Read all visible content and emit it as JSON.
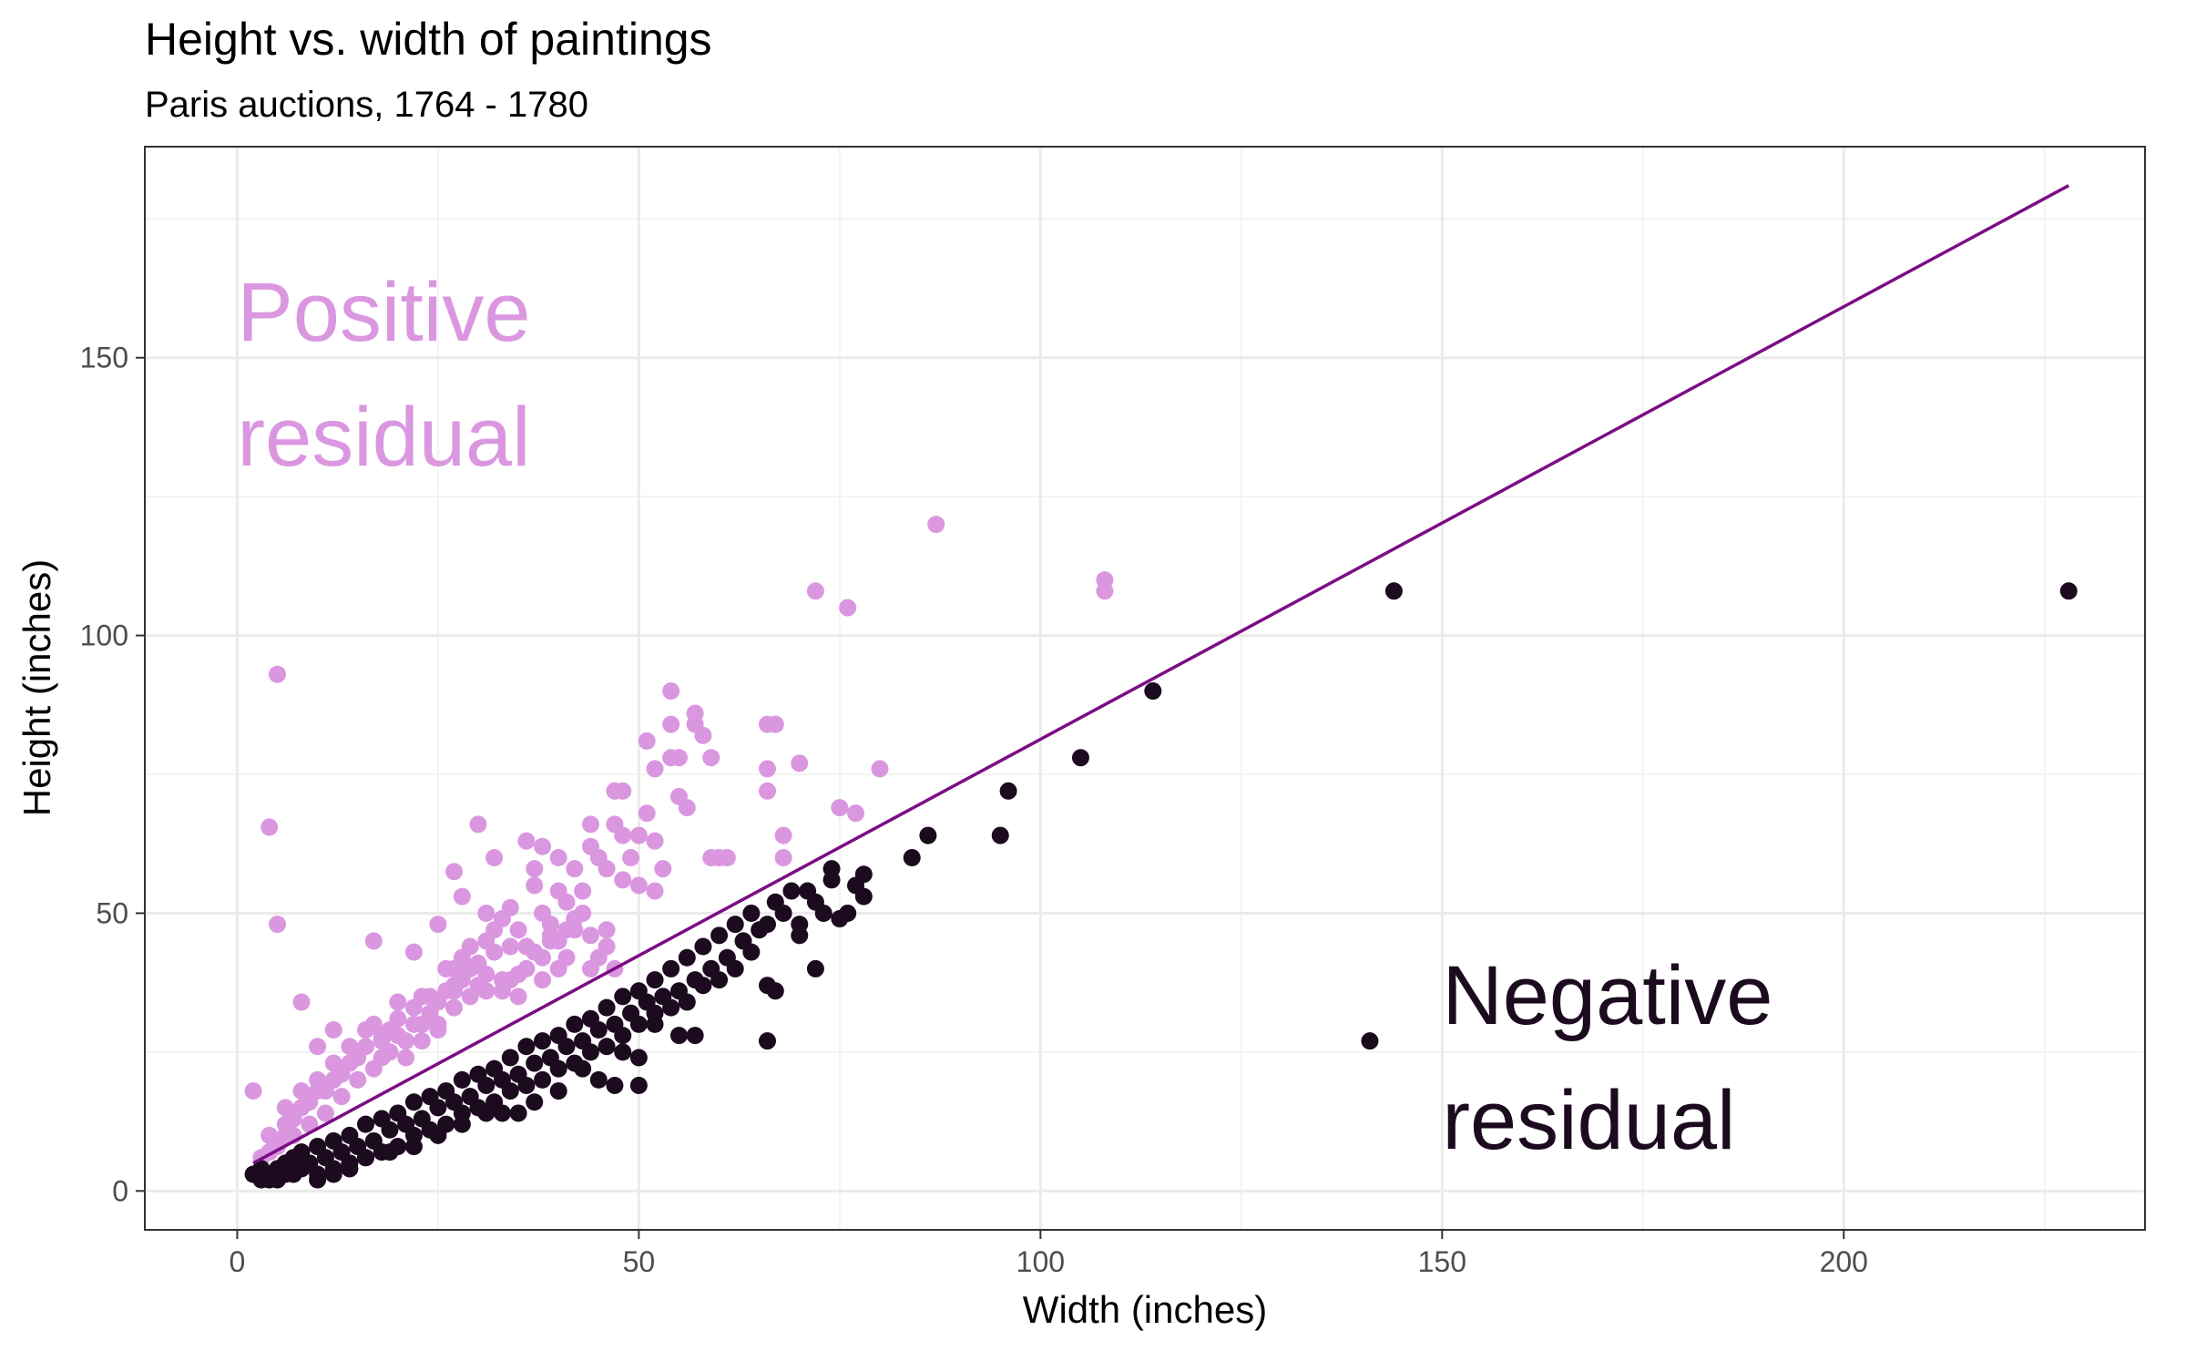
{
  "chart_data": {
    "type": "scatter",
    "title": "Height vs. width of paintings",
    "subtitle": "Paris auctions, 1764 - 1780",
    "xlabel": "Width (inches)",
    "ylabel": "Height (inches)",
    "xlim": [
      -11.5,
      237.5
    ],
    "ylim": [
      -7,
      188
    ],
    "x_ticks": [
      0,
      50,
      100,
      150,
      200
    ],
    "y_ticks": [
      0,
      50,
      100,
      150
    ],
    "grid": true,
    "colors": {
      "positive": "#DA97E0",
      "negative": "#1C0A1F",
      "fit_line": "#7B0D84",
      "panel_border": "#333333",
      "grid_major": "#EBEBEB",
      "grid_minor": "#F3F3F3"
    },
    "annotations": [
      {
        "lines": [
          "Positive",
          "residual"
        ],
        "color": "#DA97E0",
        "x": 0,
        "y": 158
      },
      {
        "lines": [
          "Negative",
          "residual"
        ],
        "color": "#1C0A1F",
        "x": 150,
        "y": 35
      }
    ],
    "fit_line": {
      "x": [
        2,
        228
      ],
      "y": [
        5,
        181
      ]
    },
    "series": [
      {
        "residual": "positive",
        "color": "#DA97E0",
        "points": [
          [
            2,
            18
          ],
          [
            4,
            65.5
          ],
          [
            5,
            48
          ],
          [
            5,
            93
          ],
          [
            8,
            34
          ],
          [
            10,
            26
          ],
          [
            12,
            29
          ],
          [
            17,
            45
          ],
          [
            22,
            43
          ],
          [
            25,
            48
          ],
          [
            27,
            57.5
          ],
          [
            27,
            37
          ],
          [
            28,
            53
          ],
          [
            30,
            66
          ],
          [
            31,
            50
          ],
          [
            32,
            47
          ],
          [
            32,
            60
          ],
          [
            34,
            51
          ],
          [
            34,
            44
          ],
          [
            36,
            63
          ],
          [
            37,
            58
          ],
          [
            37,
            55
          ],
          [
            38,
            50
          ],
          [
            38,
            62
          ],
          [
            39,
            46
          ],
          [
            40,
            60
          ],
          [
            40,
            54
          ],
          [
            41,
            52
          ],
          [
            42,
            58
          ],
          [
            42,
            49
          ],
          [
            43,
            54
          ],
          [
            44,
            62
          ],
          [
            44,
            66
          ],
          [
            45,
            60
          ],
          [
            46,
            58
          ],
          [
            47,
            72
          ],
          [
            47,
            66
          ],
          [
            48,
            72
          ],
          [
            48,
            64
          ],
          [
            49,
            60
          ],
          [
            50,
            64
          ],
          [
            51,
            81
          ],
          [
            51,
            68
          ],
          [
            52,
            76
          ],
          [
            52,
            63
          ],
          [
            53,
            58
          ],
          [
            54,
            90
          ],
          [
            54,
            84
          ],
          [
            54,
            78
          ],
          [
            55,
            78
          ],
          [
            55,
            71
          ],
          [
            56,
            69
          ],
          [
            57,
            86
          ],
          [
            57,
            84
          ],
          [
            58,
            82
          ],
          [
            59,
            78
          ],
          [
            59,
            60
          ],
          [
            60,
            60
          ],
          [
            61,
            60
          ],
          [
            66,
            84
          ],
          [
            67,
            84
          ],
          [
            66,
            76
          ],
          [
            66,
            72
          ],
          [
            68,
            64
          ],
          [
            68,
            60
          ],
          [
            70,
            77
          ],
          [
            72,
            108
          ],
          [
            75,
            69
          ],
          [
            76,
            105
          ],
          [
            77,
            68
          ],
          [
            80,
            76
          ],
          [
            87,
            120
          ],
          [
            108,
            110
          ],
          [
            108,
            108
          ],
          [
            35,
            35
          ],
          [
            38,
            42
          ],
          [
            40,
            45
          ],
          [
            42,
            47
          ],
          [
            45,
            42
          ],
          [
            47,
            40
          ],
          [
            30,
            41
          ],
          [
            32,
            43
          ],
          [
            28,
            38
          ],
          [
            26,
            36
          ],
          [
            24,
            35
          ],
          [
            22,
            33
          ],
          [
            20,
            31
          ],
          [
            18,
            28
          ],
          [
            16,
            26
          ],
          [
            14,
            23
          ],
          [
            12,
            20
          ],
          [
            10,
            18
          ],
          [
            8,
            15
          ],
          [
            6,
            12
          ],
          [
            33,
            38
          ],
          [
            36,
            44
          ],
          [
            39,
            48
          ],
          [
            41,
            42
          ],
          [
            44,
            46
          ],
          [
            29,
            44
          ],
          [
            31,
            36
          ],
          [
            27,
            33
          ],
          [
            25,
            30
          ],
          [
            23,
            30
          ],
          [
            21,
            27
          ],
          [
            19,
            25
          ],
          [
            17,
            22
          ],
          [
            15,
            20
          ],
          [
            13,
            17
          ],
          [
            11,
            14
          ],
          [
            9,
            12
          ],
          [
            7,
            10
          ],
          [
            5,
            8
          ],
          [
            4,
            7
          ],
          [
            20,
            34
          ],
          [
            22,
            30
          ],
          [
            24,
            32
          ],
          [
            26,
            40
          ],
          [
            28,
            42
          ],
          [
            34,
            38
          ],
          [
            36,
            40
          ],
          [
            38,
            38
          ],
          [
            40,
            40
          ],
          [
            43,
            50
          ],
          [
            46,
            47
          ],
          [
            48,
            56
          ],
          [
            50,
            55
          ],
          [
            52,
            54
          ],
          [
            15,
            24
          ],
          [
            18,
            27
          ],
          [
            21,
            24
          ],
          [
            13,
            21
          ],
          [
            11,
            18
          ],
          [
            9,
            16
          ],
          [
            7,
            13
          ],
          [
            6,
            10
          ],
          [
            5,
            9
          ],
          [
            3,
            6
          ],
          [
            16,
            29
          ],
          [
            19,
            29
          ],
          [
            23,
            35
          ],
          [
            27,
            36
          ],
          [
            29,
            40
          ],
          [
            31,
            45
          ],
          [
            33,
            49
          ],
          [
            35,
            47
          ],
          [
            37,
            43
          ],
          [
            39,
            45
          ],
          [
            41,
            47
          ],
          [
            30,
            37
          ],
          [
            25,
            34
          ],
          [
            23,
            27
          ],
          [
            20,
            28
          ],
          [
            18,
            24
          ],
          [
            44,
            40
          ],
          [
            46,
            44
          ],
          [
            35,
            39
          ],
          [
            33,
            36
          ],
          [
            31,
            39
          ],
          [
            29,
            35
          ],
          [
            25,
            29
          ],
          [
            27,
            40
          ],
          [
            17,
            30
          ],
          [
            14,
            26
          ],
          [
            12,
            23
          ],
          [
            10,
            20
          ],
          [
            8,
            18
          ],
          [
            6,
            15
          ],
          [
            4,
            10
          ]
        ]
      },
      {
        "residual": "negative",
        "color": "#1C0A1F",
        "points": [
          [
            2,
            3
          ],
          [
            3,
            2
          ],
          [
            3,
            4
          ],
          [
            4,
            3
          ],
          [
            5,
            4
          ],
          [
            5,
            2
          ],
          [
            6,
            5
          ],
          [
            7,
            3
          ],
          [
            7,
            6
          ],
          [
            8,
            4
          ],
          [
            8,
            7
          ],
          [
            9,
            5
          ],
          [
            10,
            3
          ],
          [
            10,
            8
          ],
          [
            11,
            6
          ],
          [
            12,
            4
          ],
          [
            12,
            9
          ],
          [
            13,
            7
          ],
          [
            14,
            5
          ],
          [
            14,
            10
          ],
          [
            15,
            8
          ],
          [
            16,
            6
          ],
          [
            16,
            12
          ],
          [
            17,
            9
          ],
          [
            18,
            7
          ],
          [
            18,
            13
          ],
          [
            19,
            11
          ],
          [
            20,
            8
          ],
          [
            20,
            14
          ],
          [
            21,
            12
          ],
          [
            22,
            10
          ],
          [
            22,
            16
          ],
          [
            23,
            13
          ],
          [
            24,
            11
          ],
          [
            24,
            17
          ],
          [
            25,
            15
          ],
          [
            26,
            12
          ],
          [
            26,
            18
          ],
          [
            27,
            16
          ],
          [
            28,
            14
          ],
          [
            28,
            20
          ],
          [
            29,
            17
          ],
          [
            30,
            15
          ],
          [
            30,
            21
          ],
          [
            31,
            19
          ],
          [
            32,
            16
          ],
          [
            32,
            22
          ],
          [
            33,
            20
          ],
          [
            34,
            18
          ],
          [
            34,
            24
          ],
          [
            35,
            21
          ],
          [
            36,
            19
          ],
          [
            36,
            26
          ],
          [
            37,
            23
          ],
          [
            38,
            20
          ],
          [
            38,
            27
          ],
          [
            39,
            24
          ],
          [
            40,
            22
          ],
          [
            40,
            28
          ],
          [
            41,
            26
          ],
          [
            42,
            23
          ],
          [
            42,
            30
          ],
          [
            43,
            27
          ],
          [
            44,
            25
          ],
          [
            44,
            31
          ],
          [
            45,
            29
          ],
          [
            46,
            26
          ],
          [
            46,
            33
          ],
          [
            47,
            30
          ],
          [
            48,
            28
          ],
          [
            48,
            35
          ],
          [
            49,
            32
          ],
          [
            50,
            30
          ],
          [
            50,
            36
          ],
          [
            51,
            34
          ],
          [
            52,
            32
          ],
          [
            52,
            38
          ],
          [
            53,
            35
          ],
          [
            54,
            33
          ],
          [
            54,
            40
          ],
          [
            55,
            36
          ],
          [
            56,
            34
          ],
          [
            56,
            42
          ],
          [
            57,
            38
          ],
          [
            58,
            37
          ],
          [
            58,
            44
          ],
          [
            59,
            40
          ],
          [
            60,
            38
          ],
          [
            60,
            46
          ],
          [
            61,
            42
          ],
          [
            62,
            40
          ],
          [
            62,
            48
          ],
          [
            63,
            45
          ],
          [
            64,
            43
          ],
          [
            64,
            50
          ],
          [
            65,
            47
          ],
          [
            66,
            37
          ],
          [
            66,
            48
          ],
          [
            67,
            36
          ],
          [
            67,
            52
          ],
          [
            68,
            50
          ],
          [
            69,
            54
          ],
          [
            70,
            48
          ],
          [
            70,
            46
          ],
          [
            71,
            54
          ],
          [
            72,
            40
          ],
          [
            72,
            52
          ],
          [
            73,
            50
          ],
          [
            74,
            56
          ],
          [
            74,
            58
          ],
          [
            75,
            49
          ],
          [
            76,
            50
          ],
          [
            77,
            55
          ],
          [
            78,
            57
          ],
          [
            78,
            53
          ],
          [
            84,
            60
          ],
          [
            86,
            64
          ],
          [
            95,
            64
          ],
          [
            96,
            72
          ],
          [
            105,
            78
          ],
          [
            114,
            90
          ],
          [
            141,
            27
          ],
          [
            144,
            108
          ],
          [
            228,
            108
          ],
          [
            45,
            20
          ],
          [
            47,
            19
          ],
          [
            50,
            19
          ],
          [
            50,
            24
          ],
          [
            55,
            28
          ],
          [
            57,
            28
          ],
          [
            66,
            27
          ],
          [
            52,
            30
          ],
          [
            48,
            25
          ],
          [
            43,
            22
          ],
          [
            40,
            18
          ],
          [
            37,
            16
          ],
          [
            35,
            14
          ],
          [
            33,
            14
          ],
          [
            31,
            14
          ],
          [
            28,
            12
          ],
          [
            25,
            10
          ],
          [
            22,
            8
          ],
          [
            19,
            7
          ],
          [
            16,
            6
          ],
          [
            14,
            4
          ],
          [
            12,
            3
          ],
          [
            10,
            2
          ],
          [
            6,
            3
          ],
          [
            4,
            2
          ]
        ]
      }
    ]
  }
}
